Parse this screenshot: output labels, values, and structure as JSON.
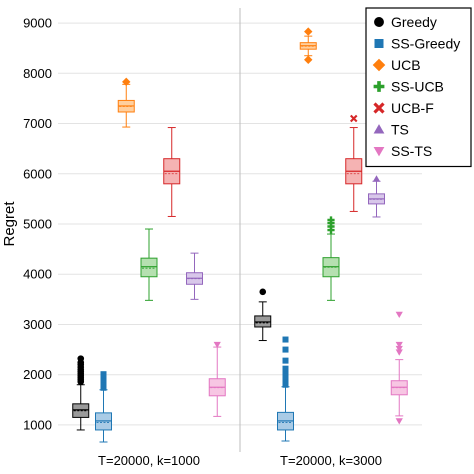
{
  "chart_data": {
    "type": "box",
    "ylabel": "Regret",
    "ylim": [
      700,
      9300
    ],
    "yticks": [
      1000,
      2000,
      3000,
      4000,
      5000,
      6000,
      7000,
      8000,
      9000
    ],
    "groups": [
      "T=20000, k=1000",
      "T=20000, k=3000"
    ],
    "grid": true,
    "legend_position": "top-right",
    "series": [
      {
        "name": "Greedy",
        "color": "#000000",
        "fill": "#9a9a9a",
        "marker": "circle",
        "boxes": [
          {
            "min": 900,
            "q1": 1150,
            "median": 1300,
            "mean": 1280,
            "q3": 1420,
            "max": 1800,
            "outliers": [
              1860,
              1900,
              1940,
              1980,
              2020,
              2060,
              2100,
              2150,
              2200,
              2240,
              2320
            ]
          },
          {
            "min": 2680,
            "q1": 2950,
            "median": 3050,
            "mean": 3030,
            "q3": 3170,
            "max": 3450,
            "outliers": [
              3650
            ]
          }
        ]
      },
      {
        "name": "SS-Greedy",
        "color": "#1f77b4",
        "fill": "#a9cbe6",
        "marker": "square",
        "boxes": [
          {
            "min": 660,
            "q1": 900,
            "median": 1080,
            "mean": 1050,
            "q3": 1240,
            "max": 1700,
            "outliers": [
              1740,
              1780,
              1820,
              1860,
              1900,
              1940,
              1980,
              2010
            ]
          },
          {
            "min": 680,
            "q1": 900,
            "median": 1080,
            "mean": 1050,
            "q3": 1250,
            "max": 1760,
            "outliers": [
              1800,
              1840,
              1880,
              1920,
              1960,
              2000,
              2040,
              2080,
              2120,
              2280,
              2500,
              2700
            ]
          }
        ]
      },
      {
        "name": "UCB",
        "color": "#ff7f0e",
        "fill": "#ffcf9e",
        "marker": "diamond",
        "boxes": [
          {
            "min": 6930,
            "q1": 7230,
            "median": 7350,
            "mean": 7340,
            "q3": 7460,
            "max": 7780,
            "outliers": [
              7830
            ]
          },
          {
            "min": 8350,
            "q1": 8480,
            "median": 8550,
            "mean": 8540,
            "q3": 8610,
            "max": 8740,
            "outliers": [
              8270,
              8830
            ]
          }
        ]
      },
      {
        "name": "SS-UCB",
        "color": "#2ca02c",
        "fill": "#b5e0b0",
        "marker": "plus",
        "boxes": [
          {
            "min": 3480,
            "q1": 3950,
            "median": 4150,
            "mean": 4120,
            "q3": 4320,
            "max": 4900,
            "outliers": []
          },
          {
            "min": 3480,
            "q1": 3950,
            "median": 4150,
            "mean": 4140,
            "q3": 4330,
            "max": 4800,
            "outliers": [
              4880,
              4950,
              5020,
              5080
            ]
          }
        ]
      },
      {
        "name": "UCB-F",
        "color": "#d62728",
        "fill": "#f5b3b3",
        "marker": "cross",
        "boxes": [
          {
            "min": 5150,
            "q1": 5800,
            "median": 6050,
            "mean": 6000,
            "q3": 6300,
            "max": 6920,
            "outliers": []
          },
          {
            "min": 5250,
            "q1": 5800,
            "median": 6050,
            "mean": 6000,
            "q3": 6300,
            "max": 6920,
            "outliers": [
              7100
            ]
          }
        ]
      },
      {
        "name": "TS",
        "color": "#9467bd",
        "fill": "#d8c7ea",
        "marker": "triangle-up",
        "boxes": [
          {
            "min": 3500,
            "q1": 3800,
            "median": 3920,
            "mean": 3910,
            "q3": 4030,
            "max": 4420,
            "outliers": []
          },
          {
            "min": 5140,
            "q1": 5400,
            "median": 5500,
            "mean": 5490,
            "q3": 5600,
            "max": 5850,
            "outliers": [
              5900
            ]
          }
        ]
      },
      {
        "name": "SS-TS",
        "color": "#e377c2",
        "fill": "#f7c6e3",
        "marker": "triangle-down",
        "boxes": [
          {
            "min": 1170,
            "q1": 1580,
            "median": 1750,
            "mean": 1740,
            "q3": 1920,
            "max": 2550,
            "outliers": [
              2600
            ]
          },
          {
            "min": 1180,
            "q1": 1600,
            "median": 1750,
            "mean": 1740,
            "q3": 1880,
            "max": 2300,
            "outliers": [
              1080,
              2450,
              2520,
              2600,
              3200
            ]
          }
        ]
      }
    ]
  }
}
